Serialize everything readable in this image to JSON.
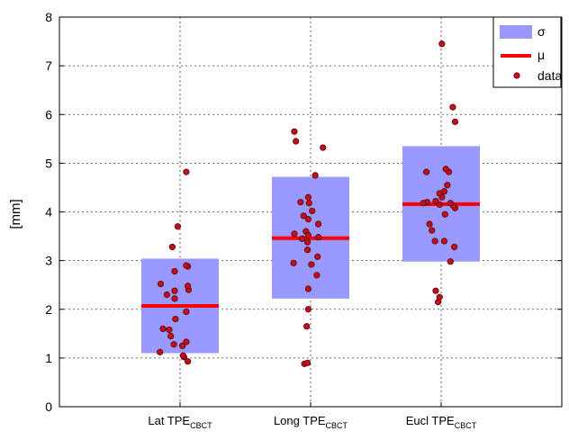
{
  "chart_data": {
    "type": "scatter",
    "ylabel": "[mm]",
    "ylim": [
      0,
      8
    ],
    "yticks": [
      0,
      1,
      2,
      3,
      4,
      5,
      6,
      7,
      8
    ],
    "grid": true,
    "legend_position": "top-right",
    "legend": [
      {
        "label": "σ",
        "kind": "box"
      },
      {
        "label": "μ",
        "kind": "mean-line"
      },
      {
        "label": "data",
        "kind": "point"
      }
    ],
    "colors": {
      "box": "#9999ff",
      "mean": "#ff0000",
      "point_fill": "#c0121c",
      "point_edge": "#5a0000",
      "grid": "#404040"
    },
    "categories": [
      {
        "name": "Lat TPE",
        "subscript": "CBCT",
        "mean": 2.07,
        "box": [
          1.1,
          3.04
        ],
        "points": [
          [
            -0.26,
            1.12
          ],
          [
            0.05,
            1.02
          ],
          [
            -0.22,
            1.6
          ],
          [
            -0.14,
            1.58
          ],
          [
            0.03,
            1.25
          ],
          [
            -0.08,
            1.28
          ],
          [
            0.08,
            1.33
          ],
          [
            0.1,
            0.93
          ],
          [
            0.04,
            1.05
          ],
          [
            -0.12,
            1.45
          ],
          [
            -0.06,
            1.8
          ],
          [
            0.08,
            1.95
          ],
          [
            -0.17,
            2.3
          ],
          [
            -0.07,
            2.22
          ],
          [
            0.11,
            2.4
          ],
          [
            0.1,
            2.48
          ],
          [
            -0.25,
            2.52
          ],
          [
            -0.07,
            2.38
          ],
          [
            -0.07,
            2.78
          ],
          [
            0.1,
            2.88
          ],
          [
            0.08,
            2.9
          ],
          [
            -0.1,
            3.28
          ],
          [
            -0.03,
            3.7
          ],
          [
            0.08,
            4.82
          ]
        ]
      },
      {
        "name": "Long TPE",
        "subscript": "CBCT",
        "mean": 3.46,
        "box": [
          2.22,
          4.72
        ],
        "points": [
          [
            -0.08,
            0.88
          ],
          [
            -0.04,
            0.9
          ],
          [
            -0.05,
            1.65
          ],
          [
            -0.03,
            2.0
          ],
          [
            -0.03,
            2.42
          ],
          [
            0.08,
            2.7
          ],
          [
            0.09,
            3.08
          ],
          [
            -0.22,
            2.95
          ],
          [
            0.01,
            2.92
          ],
          [
            -0.04,
            3.22
          ],
          [
            -0.11,
            3.45
          ],
          [
            -0.21,
            3.55
          ],
          [
            -0.06,
            3.6
          ],
          [
            -0.04,
            3.38
          ],
          [
            0.1,
            3.48
          ],
          [
            -0.03,
            3.52
          ],
          [
            0.1,
            3.75
          ],
          [
            -0.03,
            3.85
          ],
          [
            -0.09,
            3.92
          ],
          [
            0.02,
            4.02
          ],
          [
            -0.02,
            4.18
          ],
          [
            -0.13,
            4.2
          ],
          [
            -0.03,
            4.3
          ],
          [
            0.06,
            4.75
          ],
          [
            -0.19,
            5.45
          ],
          [
            0.16,
            5.32
          ],
          [
            -0.21,
            5.65
          ]
        ]
      },
      {
        "name": "Eucl TPE",
        "subscript": "CBCT",
        "mean": 4.16,
        "box": [
          2.98,
          5.35
        ],
        "points": [
          [
            -0.04,
            2.15
          ],
          [
            -0.07,
            2.38
          ],
          [
            -0.02,
            2.25
          ],
          [
            0.12,
            2.98
          ],
          [
            0.17,
            3.28
          ],
          [
            0.04,
            3.4
          ],
          [
            -0.08,
            3.4
          ],
          [
            -0.15,
            3.75
          ],
          [
            -0.12,
            3.62
          ],
          [
            0.05,
            3.95
          ],
          [
            0.18,
            4.08
          ],
          [
            0.16,
            4.12
          ],
          [
            0.12,
            4.18
          ],
          [
            -0.07,
            4.22
          ],
          [
            0.01,
            4.3
          ],
          [
            -0.02,
            4.38
          ],
          [
            0.04,
            4.42
          ],
          [
            -0.02,
            4.15
          ],
          [
            0.08,
            4.55
          ],
          [
            -0.18,
            4.2
          ],
          [
            -0.23,
            4.18
          ],
          [
            0.1,
            4.82
          ],
          [
            0.06,
            4.88
          ],
          [
            -0.19,
            4.82
          ],
          [
            0.18,
            5.85
          ],
          [
            0.15,
            6.15
          ],
          [
            0.01,
            7.45
          ]
        ]
      }
    ]
  }
}
